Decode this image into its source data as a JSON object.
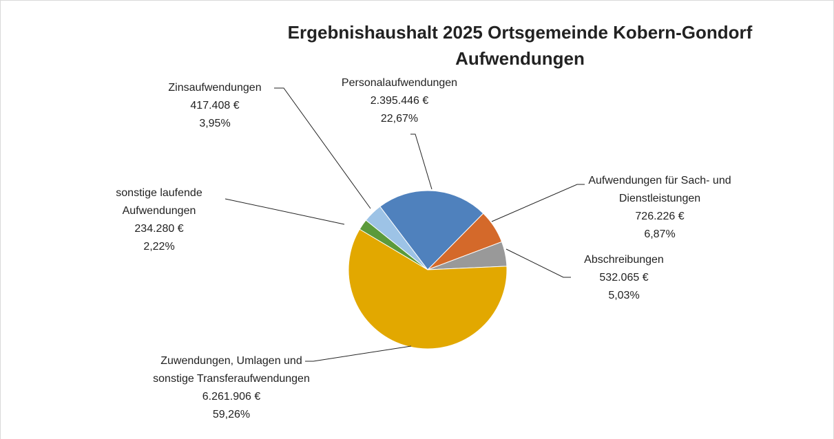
{
  "chart_data": {
    "type": "pie",
    "title": "Ergebnishaushalt 2025 Ortsgemeinde Kobern-Gondorf Aufwendungen",
    "categories": [
      "Personalaufwendungen",
      "Aufwendungen für Sach- und Dienstleistungen",
      "Abschreibungen",
      "Zuwendungen, Umlagen und sonstige Transferaufwendungen",
      "sonstige laufende Aufwendungen",
      "Zinsaufwendungen"
    ],
    "values": [
      2395446,
      726226,
      532065,
      6261906,
      234280,
      417408
    ],
    "value_labels": [
      "2.395.446 €",
      "726.226 €",
      "532.065 €",
      "6.261.906 €",
      "234.280 €",
      "417.408 €"
    ],
    "percentages": [
      22.67,
      6.87,
      5.03,
      59.26,
      2.22,
      3.95
    ],
    "percentage_labels": [
      "22,67%",
      "6,87%",
      "5,03%",
      "59,26%",
      "2,22%",
      "3,95%"
    ],
    "colors": [
      "#4f81bd",
      "#d4692a",
      "#999999",
      "#e2a800",
      "#5b9a3b",
      "#9dc3e6"
    ]
  }
}
